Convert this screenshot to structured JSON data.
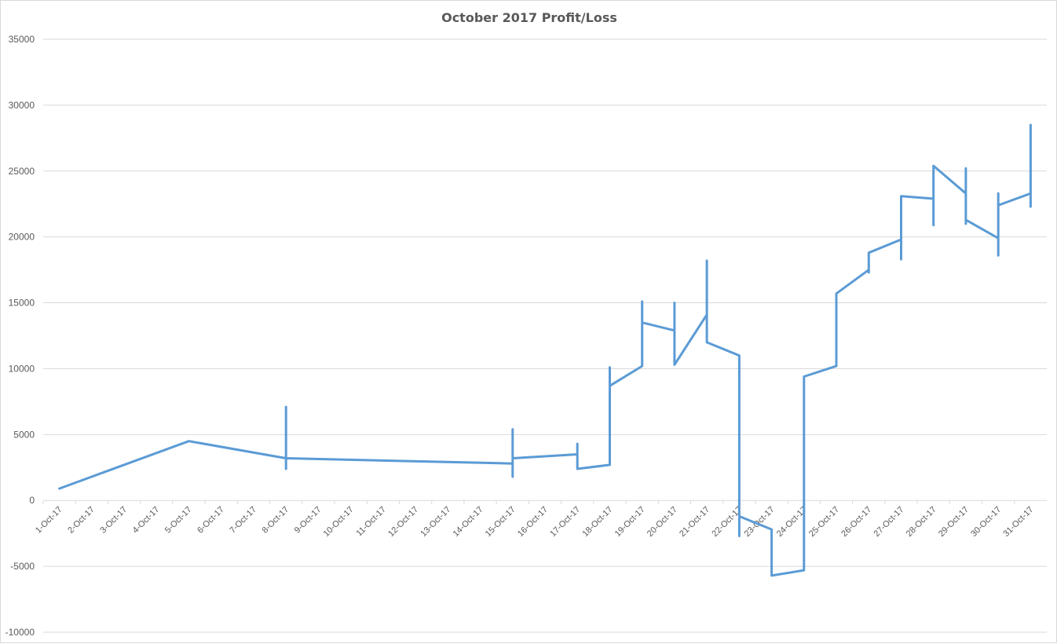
{
  "chart_data": {
    "type": "line",
    "title": "October 2017 Profit/Loss",
    "xlabel": "",
    "ylabel": "",
    "ylim": [
      -10000,
      35000
    ],
    "yticks": [
      -10000,
      -5000,
      0,
      5000,
      10000,
      15000,
      20000,
      25000,
      30000,
      35000
    ],
    "categories": [
      "1-Oct-17",
      "2-Oct-17",
      "3-Oct-17",
      "4-Oct-17",
      "5-Oct-17",
      "6-Oct-17",
      "7-Oct-17",
      "8-Oct-17",
      "9-Oct-17",
      "10-Oct-17",
      "11-Oct-17",
      "12-Oct-17",
      "13-Oct-17",
      "14-Oct-17",
      "15-Oct-17",
      "16-Oct-17",
      "17-Oct-17",
      "18-Oct-17",
      "19-Oct-17",
      "20-Oct-17",
      "21-Oct-17",
      "22-Oct-17",
      "23-Oct-17",
      "24-Oct-17",
      "25-Oct-17",
      "26-Oct-17",
      "27-Oct-17",
      "28-Oct-17",
      "29-Oct-17",
      "30-Oct-17",
      "31-Oct-17"
    ],
    "grid": true,
    "legend": "none",
    "line_color": "#5b9bd5",
    "series": [
      {
        "points": [
          [
            "1-Oct-17",
            900
          ],
          [
            "5-Oct-17",
            4500
          ],
          [
            "8-Oct-17",
            3200
          ],
          [
            "8-Oct-17",
            7100
          ],
          [
            "8-Oct-17",
            2400
          ],
          [
            "8-Oct-17",
            3200
          ],
          [
            "15-Oct-17",
            2800
          ],
          [
            "15-Oct-17",
            5400
          ],
          [
            "15-Oct-17",
            1800
          ],
          [
            "15-Oct-17",
            3200
          ],
          [
            "17-Oct-17",
            3500
          ],
          [
            "17-Oct-17",
            4300
          ],
          [
            "17-Oct-17",
            2400
          ],
          [
            "18-Oct-17",
            2700
          ],
          [
            "18-Oct-17",
            10100
          ],
          [
            "18-Oct-17",
            8700
          ],
          [
            "19-Oct-17",
            10200
          ],
          [
            "19-Oct-17",
            15100
          ],
          [
            "19-Oct-17",
            13500
          ],
          [
            "20-Oct-17",
            12900
          ],
          [
            "20-Oct-17",
            15000
          ],
          [
            "20-Oct-17",
            10300
          ],
          [
            "21-Oct-17",
            14100
          ],
          [
            "21-Oct-17",
            18200
          ],
          [
            "21-Oct-17",
            12000
          ],
          [
            "22-Oct-17",
            11000
          ],
          [
            "22-Oct-17",
            -2700
          ],
          [
            "22-Oct-17",
            -1200
          ],
          [
            "23-Oct-17",
            -2200
          ],
          [
            "23-Oct-17",
            -5700
          ],
          [
            "24-Oct-17",
            -5300
          ],
          [
            "24-Oct-17",
            9400
          ],
          [
            "25-Oct-17",
            10200
          ],
          [
            "25-Oct-17",
            15700
          ],
          [
            "26-Oct-17",
            17500
          ],
          [
            "26-Oct-17",
            17300
          ],
          [
            "26-Oct-17",
            18800
          ],
          [
            "27-Oct-17",
            19800
          ],
          [
            "27-Oct-17",
            18300
          ],
          [
            "27-Oct-17",
            23100
          ],
          [
            "28-Oct-17",
            22900
          ],
          [
            "28-Oct-17",
            20900
          ],
          [
            "28-Oct-17",
            25400
          ],
          [
            "29-Oct-17",
            23300
          ],
          [
            "29-Oct-17",
            25200
          ],
          [
            "29-Oct-17",
            21000
          ],
          [
            "29-Oct-17",
            21300
          ],
          [
            "30-Oct-17",
            19900
          ],
          [
            "30-Oct-17",
            18600
          ],
          [
            "30-Oct-17",
            23300
          ],
          [
            "30-Oct-17",
            22400
          ],
          [
            "31-Oct-17",
            23300
          ],
          [
            "31-Oct-17",
            28500
          ],
          [
            "31-Oct-17",
            22300
          ]
        ]
      }
    ]
  }
}
